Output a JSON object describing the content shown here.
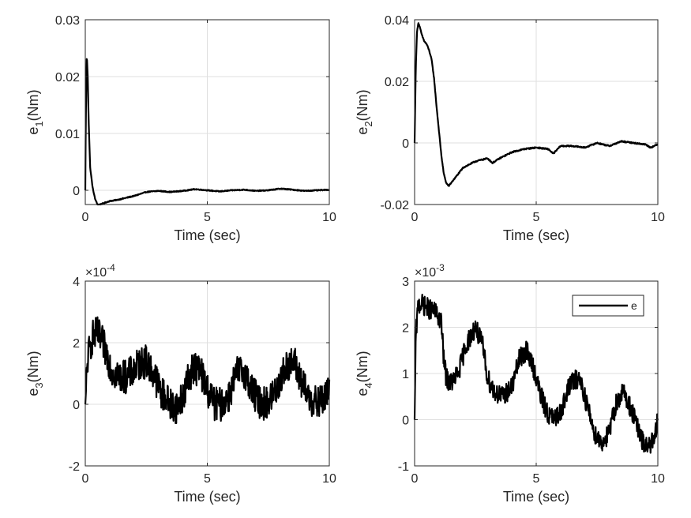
{
  "chart_data": [
    {
      "type": "line",
      "xlabel": "Time (sec)",
      "ylabel": {
        "base": "e",
        "sub": "1",
        "rest": "(Nm)"
      },
      "xlim": [
        0,
        10
      ],
      "ylim": [
        -0.0025,
        0.03
      ],
      "xticks": [
        0,
        5,
        10
      ],
      "xtick_labels": [
        "0",
        "5",
        "10"
      ],
      "yticks": [
        0,
        0.01,
        0.02,
        0.03
      ],
      "ytick_labels": [
        "0",
        "0.01",
        "0.02",
        "0.03"
      ],
      "exponent_label": null,
      "grid": true,
      "legend": null,
      "series": [
        {
          "name": "e1",
          "noise": 8e-05,
          "x": [
            0,
            0.02,
            0.06,
            0.1,
            0.14,
            0.2,
            0.3,
            0.4,
            0.5,
            0.6,
            0.8,
            1.0,
            1.3,
            1.6,
            2.0,
            2.5,
            3.0,
            3.5,
            4.0,
            4.5,
            5.0,
            5.5,
            6.0,
            6.5,
            7.0,
            7.5,
            8.0,
            8.5,
            9.0,
            9.5,
            10
          ],
          "y": [
            0,
            0.012,
            0.024,
            0.02,
            0.012,
            0.004,
            0.0005,
            -0.0015,
            -0.0025,
            -0.0025,
            -0.0022,
            -0.0019,
            -0.0017,
            -0.0014,
            -0.001,
            -0.0003,
            -0.0001,
            -0.0003,
            -0.0001,
            0.0002,
            0.0,
            -0.0002,
            0.0,
            0.0001,
            -0.0001,
            0.0,
            0.0003,
            0.0001,
            -0.0001,
            0.0,
            0.0001
          ]
        }
      ]
    },
    {
      "type": "line",
      "xlabel": "Time (sec)",
      "ylabel": {
        "base": "e",
        "sub": "2",
        "rest": "(Nm)"
      },
      "xlim": [
        0,
        10
      ],
      "ylim": [
        -0.02,
        0.04
      ],
      "xticks": [
        0,
        5,
        10
      ],
      "xtick_labels": [
        "0",
        "5",
        "10"
      ],
      "yticks": [
        -0.02,
        0,
        0.02,
        0.04
      ],
      "ytick_labels": [
        "-0.02",
        "0",
        "0.02",
        "0.04"
      ],
      "exponent_label": null,
      "grid": true,
      "legend": null,
      "series": [
        {
          "name": "e2",
          "noise": 0.0002,
          "x": [
            0,
            0.05,
            0.1,
            0.15,
            0.2,
            0.3,
            0.4,
            0.5,
            0.6,
            0.7,
            0.8,
            0.9,
            1.0,
            1.1,
            1.2,
            1.3,
            1.4,
            1.5,
            1.7,
            2.0,
            2.5,
            3.0,
            3.2,
            3.5,
            4.0,
            4.5,
            5.0,
            5.5,
            5.7,
            6.0,
            6.5,
            7.0,
            7.5,
            8.0,
            8.5,
            9.0,
            9.5,
            9.7,
            10
          ],
          "y": [
            0,
            0.025,
            0.036,
            0.039,
            0.038,
            0.035,
            0.033,
            0.032,
            0.03,
            0.027,
            0.021,
            0.012,
            0.004,
            -0.004,
            -0.01,
            -0.013,
            -0.014,
            -0.013,
            -0.011,
            -0.008,
            -0.006,
            -0.005,
            -0.0065,
            -0.005,
            -0.003,
            -0.002,
            -0.0015,
            -0.002,
            -0.0035,
            -0.001,
            -0.001,
            -0.0015,
            0.0,
            -0.001,
            0.0005,
            0.0,
            -0.0005,
            -0.0015,
            -0.0005
          ]
        }
      ]
    },
    {
      "type": "line",
      "xlabel": "Time (sec)",
      "ylabel": {
        "base": "e",
        "sub": "3",
        "rest": "(Nm)"
      },
      "xlim": [
        0,
        10
      ],
      "ylim": [
        -2,
        4
      ],
      "xticks": [
        0,
        5,
        10
      ],
      "xtick_labels": [
        "0",
        "5",
        "10"
      ],
      "yticks": [
        -2,
        0,
        2,
        4
      ],
      "ytick_labels": [
        "-2",
        "0",
        "2",
        "4"
      ],
      "exponent_label": {
        "base": "×10",
        "exp": "-4"
      },
      "grid": true,
      "legend": null,
      "series": [
        {
          "name": "e3",
          "noise": 0.55,
          "x": [
            0,
            0.1,
            0.3,
            0.5,
            0.7,
            0.9,
            1.1,
            1.4,
            1.7,
            2.0,
            2.2,
            2.5,
            2.8,
            3.1,
            3.5,
            3.8,
            4.1,
            4.4,
            4.7,
            5.0,
            5.3,
            5.6,
            5.9,
            6.2,
            6.5,
            6.8,
            7.1,
            7.4,
            7.7,
            8.0,
            8.3,
            8.6,
            8.9,
            9.2,
            9.5,
            9.8,
            10
          ],
          "y": [
            0,
            1.5,
            2.2,
            2.3,
            2.0,
            1.6,
            1.1,
            0.9,
            0.9,
            1.1,
            1.3,
            1.4,
            1.0,
            0.4,
            0.0,
            -0.1,
            0.5,
            1.2,
            1.1,
            0.5,
            0.0,
            0.0,
            0.3,
            1.0,
            1.1,
            0.5,
            0.1,
            0.0,
            0.3,
            0.8,
            1.3,
            1.3,
            0.6,
            0.2,
            0.0,
            0.2,
            0.4
          ]
        }
      ]
    },
    {
      "type": "line",
      "xlabel": "Time (sec)",
      "ylabel": {
        "base": "e",
        "sub": "4",
        "rest": "(Nm)"
      },
      "xlim": [
        0,
        10
      ],
      "ylim": [
        -1,
        3
      ],
      "xticks": [
        0,
        5,
        10
      ],
      "xtick_labels": [
        "0",
        "5",
        "10"
      ],
      "yticks": [
        -1,
        0,
        1,
        2,
        3
      ],
      "ytick_labels": [
        "-1",
        "0",
        "1",
        "2",
        "3"
      ],
      "exponent_label": {
        "base": "×10",
        "exp": "-3"
      },
      "grid": true,
      "legend": {
        "label": "e",
        "location": "top-right"
      },
      "series": [
        {
          "name": "e",
          "noise": 0.22,
          "x": [
            0,
            0.05,
            0.15,
            0.3,
            0.6,
            0.9,
            1.1,
            1.2,
            1.3,
            1.5,
            1.8,
            2.1,
            2.5,
            2.8,
            3.0,
            3.3,
            3.6,
            4.0,
            4.3,
            4.6,
            4.9,
            5.2,
            5.5,
            5.8,
            6.1,
            6.4,
            6.8,
            7.1,
            7.4,
            7.7,
            8.0,
            8.3,
            8.6,
            9.0,
            9.3,
            9.5,
            9.7,
            9.85,
            10
          ],
          "y": [
            0,
            1.8,
            2.5,
            2.5,
            2.4,
            2.3,
            2.1,
            1.3,
            0.9,
            0.8,
            1.0,
            1.6,
            2.0,
            1.6,
            0.9,
            0.6,
            0.5,
            0.7,
            1.3,
            1.5,
            1.1,
            0.5,
            0.1,
            0.0,
            0.3,
            0.8,
            0.9,
            0.3,
            -0.3,
            -0.5,
            -0.3,
            0.4,
            0.6,
            0.1,
            -0.4,
            -0.6,
            -0.5,
            -0.5,
            0.0
          ]
        }
      ]
    }
  ]
}
